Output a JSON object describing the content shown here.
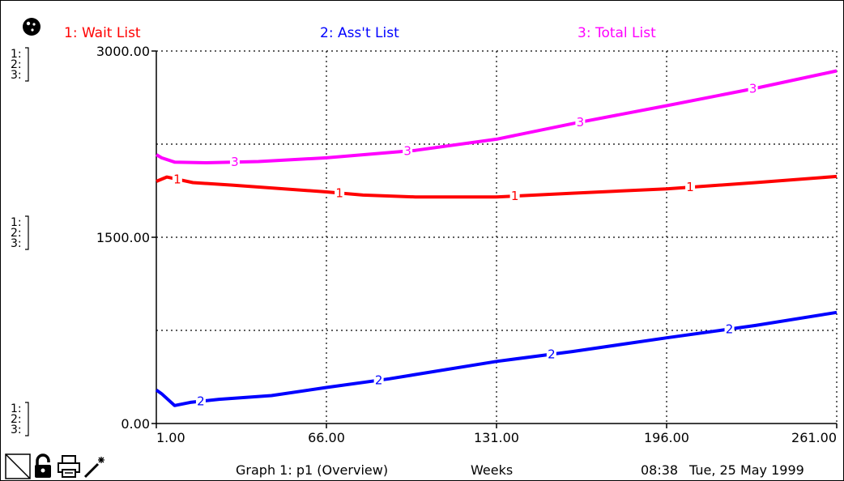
{
  "app": {
    "mode_icon": "graph-pad-circle-icon",
    "bottom_icons": [
      "page-corner-icon",
      "padlock-icon",
      "printer-icon",
      "magic-wand-icon"
    ]
  },
  "legend": [
    {
      "number": "1",
      "label": "1: Wait List",
      "color": "#ff0000"
    },
    {
      "number": "2",
      "label": "2: Ass't List",
      "color": "#0000ff"
    },
    {
      "number": "3",
      "label": "3: Total List",
      "color": "#ff00ff"
    }
  ],
  "footer": {
    "graph_title": "Graph 1: p1 (Overview)",
    "units": "Weeks",
    "time": "08:38",
    "date": "Tue, 25 May 1999"
  },
  "chart_data": {
    "type": "line",
    "title": "",
    "xlabel": "Weeks",
    "ylabel": "",
    "xlim": [
      1,
      261
    ],
    "ylim": [
      0,
      3000
    ],
    "x_ticks": [
      "1.00",
      "66.00",
      "131.00",
      "196.00",
      "261.00"
    ],
    "y_ticks_labeled": [
      {
        "value": 0,
        "label": "0.00"
      },
      {
        "value": 1500,
        "label": "1500.00"
      },
      {
        "value": 3000,
        "label": "3000.00"
      }
    ],
    "y_gridlines": [
      750,
      1500,
      2250
    ],
    "grid": true,
    "axis_scale_markers": [
      {
        "value": 3000,
        "rows": [
          "1:",
          "2:",
          "3:"
        ]
      },
      {
        "value": 1500,
        "rows": [
          "1:",
          "2:",
          "3:"
        ]
      },
      {
        "value": 0,
        "rows": [
          "1:",
          "2:",
          "3:"
        ]
      }
    ],
    "series": [
      {
        "name": "1: Wait List",
        "marker": "1",
        "color": "#ff0000",
        "x": [
          1,
          5,
          15,
          30,
          66,
          80,
          100,
          131,
          160,
          196,
          230,
          261
        ],
        "y": [
          1950,
          1985,
          1940,
          1920,
          1865,
          1840,
          1825,
          1825,
          1855,
          1890,
          1940,
          1990
        ],
        "marker_x": [
          9,
          71,
          138,
          205
        ]
      },
      {
        "name": "2: Ass't List",
        "marker": "2",
        "color": "#0000ff",
        "x": [
          1,
          3,
          8,
          14,
          25,
          45,
          66,
          90,
          131,
          160,
          196,
          230,
          261
        ],
        "y": [
          270,
          240,
          145,
          170,
          195,
          225,
          290,
          360,
          500,
          580,
          690,
          790,
          895
        ],
        "marker_x": [
          18,
          86,
          152,
          220
        ]
      },
      {
        "name": "3: Total List",
        "marker": "3",
        "color": "#ff00ff",
        "x": [
          1,
          3,
          8,
          20,
          40,
          66,
          100,
          131,
          160,
          196,
          230,
          261
        ],
        "y": [
          2165,
          2140,
          2105,
          2100,
          2110,
          2140,
          2200,
          2290,
          2415,
          2560,
          2700,
          2840
        ],
        "marker_x": [
          31,
          97,
          163,
          229
        ]
      }
    ]
  }
}
